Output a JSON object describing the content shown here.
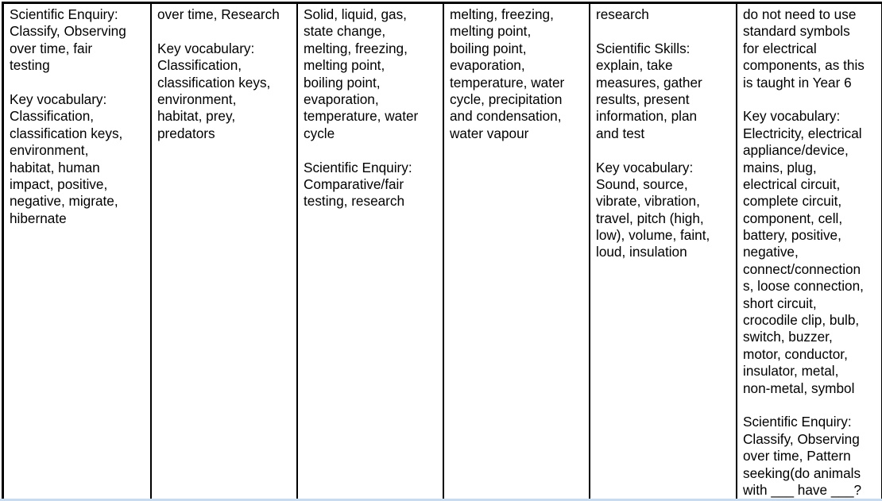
{
  "table": {
    "columns": [
      [
        "Scientific Enquiry:",
        "Classify, Observing",
        "over time, fair",
        "testing",
        "",
        "Key vocabulary:",
        "Classification,",
        "classification keys,",
        "environment,",
        "habitat, human",
        "impact, positive,",
        "negative, migrate,",
        "hibernate"
      ],
      [
        "over time, Research",
        "",
        "Key vocabulary:",
        "Classification,",
        "classification keys,",
        "environment,",
        "habitat, prey,",
        "predators"
      ],
      [
        "Solid, liquid, gas,",
        "state change,",
        "melting, freezing,",
        "melting point,",
        "boiling point,",
        "evaporation,",
        "temperature, water",
        "cycle",
        "",
        "Scientific Enquiry:",
        "Comparative/fair",
        "testing, research"
      ],
      [
        "melting, freezing,",
        "melting point,",
        "boiling point,",
        "evaporation,",
        "temperature, water",
        "cycle, precipitation",
        "and condensation,",
        "water vapour"
      ],
      [
        "research",
        "",
        "Scientific Skills:",
        "explain, take",
        "measures, gather",
        "results, present",
        "information, plan",
        "and test",
        "",
        "Key vocabulary:",
        "Sound, source,",
        "vibrate, vibration,",
        "travel, pitch (high,",
        "low), volume, faint,",
        "loud, insulation"
      ],
      [
        "do not need to use",
        "standard symbols",
        "for electrical",
        "components, as this",
        "is taught in Year 6",
        "",
        "Key vocabulary:",
        "Electricity, electrical",
        "appliance/device,",
        "mains, plug,",
        "electrical circuit,",
        "complete circuit,",
        "component, cell,",
        "battery, positive,",
        "negative,",
        "connect/connection",
        "s, loose connection,",
        "short circuit,",
        "crocodile clip, bulb,",
        "switch, buzzer,",
        "motor, conductor,",
        "insulator, metal,",
        "non-metal, symbol",
        "",
        "Scientific Enquiry:",
        "Classify, Observing",
        "over time, Pattern",
        "seeking(do animals",
        "with ___ have ___?"
      ]
    ]
  }
}
